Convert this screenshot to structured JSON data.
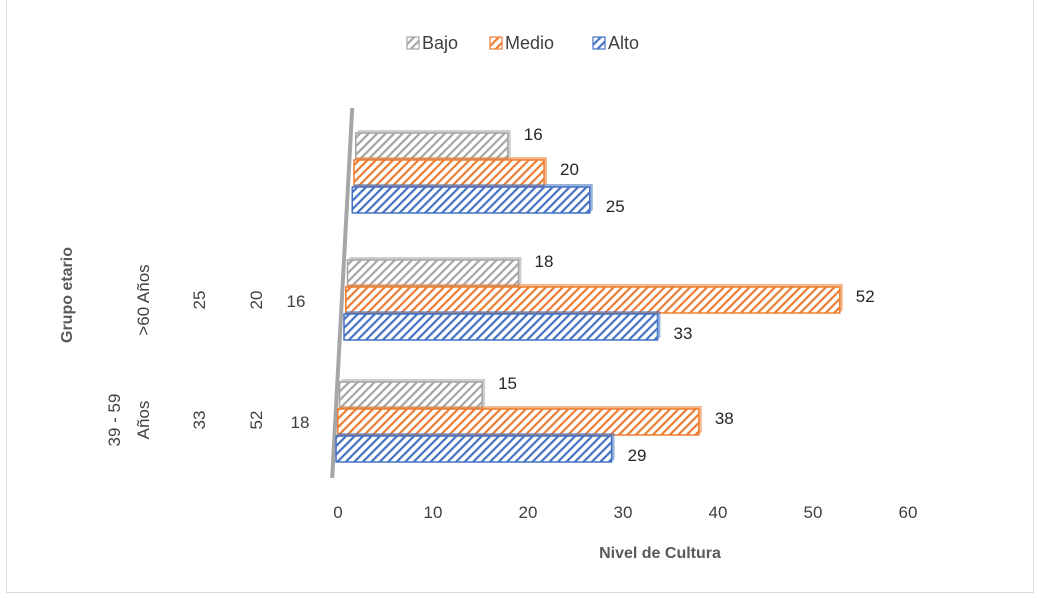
{
  "chart_data": {
    "type": "bar",
    "orientation": "horizontal",
    "categories": [
      "39 - 59 Años",
      ">60 Años",
      ""
    ],
    "category_lines": [
      [
        "39 - 59",
        "Años"
      ],
      [
        ">60 Años"
      ],
      []
    ],
    "series": [
      {
        "name": "Bajo",
        "values": [
          15,
          18,
          16
        ],
        "color": "#a5a5a5"
      },
      {
        "name": "Medio",
        "values": [
          38,
          52,
          20
        ],
        "color": "#ed7d31"
      },
      {
        "name": "Alto",
        "values": [
          29,
          33,
          25
        ],
        "color": "#4472c4"
      }
    ],
    "axis_table": [
      {
        "values": [
          "33",
          "52",
          "18"
        ]
      },
      {
        "values": [
          "25",
          "20",
          "16"
        ]
      }
    ],
    "xlim": [
      0,
      60
    ],
    "xticks": [
      "0",
      "10",
      "20",
      "30",
      "40",
      "50",
      "60"
    ],
    "xlabel": "Nivel de Cultura",
    "ylabel": "Grupo etario",
    "legend_position": "top",
    "pattern": "diagonal-hatch",
    "grid": false
  }
}
